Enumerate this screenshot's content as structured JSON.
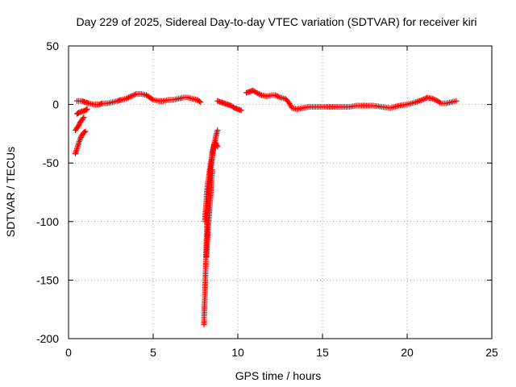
{
  "chart_data": {
    "type": "scatter",
    "title": "Day 229 of 2025, Sidereal Day-to-day VTEC variation (SDTVAR) for receiver kiri",
    "xlabel": "GPS time / hours",
    "ylabel": "SDTVAR / TECUs",
    "xlim": [
      0,
      25
    ],
    "ylim": [
      -200,
      50
    ],
    "xticks": [
      0,
      5,
      10,
      15,
      20,
      25
    ],
    "yticks": [
      -200,
      -150,
      -100,
      -50,
      0,
      50
    ],
    "xtick_labels": [
      "0",
      "5",
      "10",
      "15",
      "20",
      "25"
    ],
    "ytick_labels": [
      "-200",
      "-150",
      "-100",
      "-50",
      "0",
      "50"
    ],
    "grid": true,
    "marker": "+",
    "series_color": "#ff0000",
    "series": [
      {
        "name": "SDTVAR",
        "segments": [
          [
            [
              0.5,
              3
            ],
            [
              0.8,
              3
            ],
            [
              1.0,
              2
            ],
            [
              1.2,
              1
            ],
            [
              1.5,
              0
            ],
            [
              1.8,
              0
            ],
            [
              2.0,
              1
            ],
            [
              2.3,
              1
            ],
            [
              2.6,
              2
            ],
            [
              2.9,
              3
            ],
            [
              3.1,
              4
            ],
            [
              3.4,
              5
            ],
            [
              3.7,
              7
            ],
            [
              4.0,
              9
            ],
            [
              4.3,
              9
            ],
            [
              4.6,
              8
            ],
            [
              4.8,
              6
            ],
            [
              5.0,
              4
            ],
            [
              5.3,
              3
            ],
            [
              5.6,
              3
            ],
            [
              5.9,
              4
            ],
            [
              6.2,
              4
            ],
            [
              6.5,
              5
            ],
            [
              6.8,
              6
            ],
            [
              7.0,
              6
            ],
            [
              7.3,
              5
            ],
            [
              7.6,
              4
            ],
            [
              7.8,
              2
            ]
          ],
          [
            [
              0.5,
              -8
            ],
            [
              0.6,
              -7
            ],
            [
              0.8,
              -6
            ],
            [
              1.0,
              -5
            ],
            [
              1.1,
              -4
            ]
          ],
          [
            [
              0.4,
              -42
            ],
            [
              0.5,
              -38
            ],
            [
              0.6,
              -33
            ],
            [
              0.7,
              -29
            ],
            [
              0.8,
              -26
            ],
            [
              0.9,
              -24
            ],
            [
              1.0,
              -23
            ]
          ],
          [
            [
              0.4,
              -22
            ],
            [
              0.5,
              -20
            ],
            [
              0.6,
              -18
            ],
            [
              0.7,
              -15
            ],
            [
              0.8,
              -13
            ],
            [
              0.9,
              -11
            ]
          ],
          [
            [
              8.0,
              -188
            ],
            [
              8.02,
              -176
            ],
            [
              8.05,
              -165
            ],
            [
              8.07,
              -152
            ],
            [
              8.1,
              -140
            ],
            [
              8.12,
              -128
            ],
            [
              8.15,
              -116
            ],
            [
              8.18,
              -104
            ],
            [
              8.22,
              -92
            ],
            [
              8.26,
              -82
            ],
            [
              8.3,
              -72
            ],
            [
              8.35,
              -63
            ],
            [
              8.4,
              -55
            ],
            [
              8.46,
              -48
            ],
            [
              8.52,
              -42
            ],
            [
              8.58,
              -36
            ],
            [
              8.65,
              -31
            ],
            [
              8.72,
              -26
            ],
            [
              8.8,
              -22
            ]
          ],
          [
            [
              8.05,
              -100
            ],
            [
              8.1,
              -90
            ],
            [
              8.15,
              -80
            ],
            [
              8.2,
              -70
            ],
            [
              8.3,
              -60
            ],
            [
              8.4,
              -50
            ],
            [
              8.5,
              -40
            ],
            [
              8.6,
              -34
            ],
            [
              8.7,
              -33
            ],
            [
              8.8,
              -36
            ]
          ],
          [
            [
              8.15,
              -130
            ],
            [
              8.2,
              -115
            ],
            [
              8.25,
              -105
            ],
            [
              8.3,
              -95
            ],
            [
              8.35,
              -85
            ],
            [
              8.4,
              -75
            ],
            [
              8.45,
              -65
            ],
            [
              8.5,
              -56
            ]
          ],
          [
            [
              8.8,
              3
            ],
            [
              9.0,
              2
            ],
            [
              9.2,
              1
            ],
            [
              9.4,
              0
            ],
            [
              9.6,
              -1
            ],
            [
              9.8,
              -3
            ],
            [
              10.0,
              -4
            ],
            [
              10.2,
              -5
            ]
          ],
          [
            [
              10.5,
              10
            ],
            [
              10.7,
              11
            ],
            [
              10.9,
              12
            ],
            [
              11.1,
              10
            ],
            [
              11.4,
              8
            ],
            [
              11.7,
              7
            ],
            [
              12.0,
              8
            ],
            [
              12.2,
              8
            ],
            [
              12.5,
              6
            ],
            [
              12.8,
              5
            ],
            [
              13.0,
              2
            ],
            [
              13.2,
              -3
            ],
            [
              13.5,
              -4
            ],
            [
              13.8,
              -3
            ],
            [
              14.2,
              -2
            ],
            [
              14.6,
              -2
            ],
            [
              15.0,
              -2
            ],
            [
              15.4,
              -2
            ],
            [
              15.8,
              -2
            ],
            [
              16.2,
              -2
            ],
            [
              16.6,
              -2
            ],
            [
              17.0,
              -1
            ],
            [
              17.5,
              -1
            ],
            [
              18.0,
              -1
            ],
            [
              18.5,
              -2
            ],
            [
              19.0,
              -3
            ],
            [
              19.5,
              -1
            ],
            [
              20.0,
              0
            ],
            [
              20.5,
              2
            ],
            [
              20.9,
              4
            ],
            [
              21.2,
              6
            ],
            [
              21.5,
              5
            ],
            [
              21.8,
              3
            ],
            [
              22.0,
              1
            ],
            [
              22.3,
              1
            ],
            [
              22.6,
              2
            ],
            [
              22.9,
              3
            ]
          ]
        ]
      }
    ]
  }
}
